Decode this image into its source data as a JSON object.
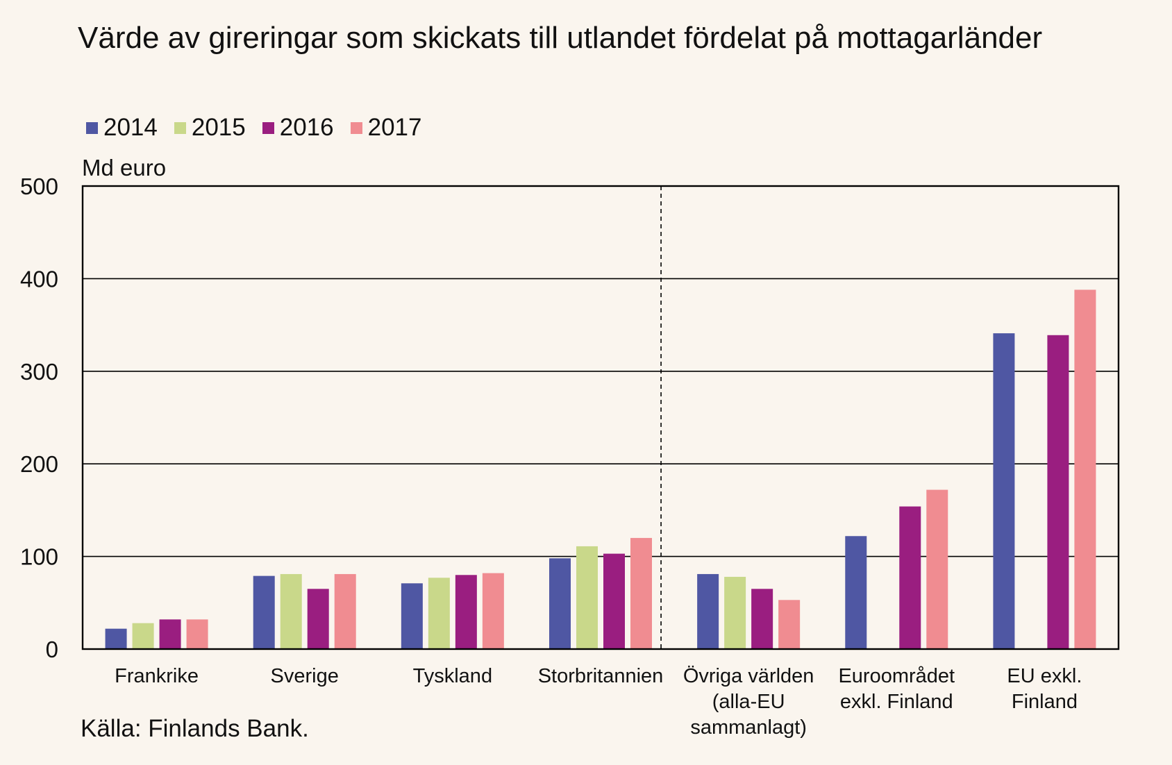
{
  "chart_data": {
    "type": "bar",
    "title": "Värde av gireringar som skickats till utlandet fördelat på mottagarländer",
    "ylabel": "Md euro",
    "ylim": [
      0,
      500
    ],
    "yticks": [
      0,
      100,
      200,
      300,
      400,
      500
    ],
    "grid": true,
    "legend_position": "top-left",
    "categories": [
      "Frankrike",
      "Sverige",
      "Tyskland",
      "Storbritannien",
      "Övriga världen (alla-EU sammanlagt)",
      "Euroområdet exkl. Finland",
      "EU exkl. Finland"
    ],
    "category_label_lines": [
      [
        "Frankrike"
      ],
      [
        "Sverige"
      ],
      [
        "Tyskland"
      ],
      [
        "Storbritannien"
      ],
      [
        "Övriga världen",
        "(alla-EU",
        "sammanlagt)"
      ],
      [
        "Euroområdet",
        "exkl. Finland"
      ],
      [
        "EU exkl.",
        "Finland"
      ]
    ],
    "divider_after_category": 3,
    "series": [
      {
        "name": "2014",
        "color": "#4f57a3",
        "values": [
          22,
          79,
          71,
          98,
          81,
          122,
          341
        ]
      },
      {
        "name": "2015",
        "color": "#c9d88a",
        "values": [
          28,
          81,
          77,
          111,
          78,
          null,
          null
        ]
      },
      {
        "name": "2016",
        "color": "#9a1e80",
        "values": [
          32,
          65,
          80,
          103,
          65,
          154,
          339
        ]
      },
      {
        "name": "2017",
        "color": "#f08c91",
        "values": [
          32,
          81,
          82,
          120,
          53,
          172,
          388
        ]
      }
    ]
  },
  "source": "Källa: Finlands Bank."
}
